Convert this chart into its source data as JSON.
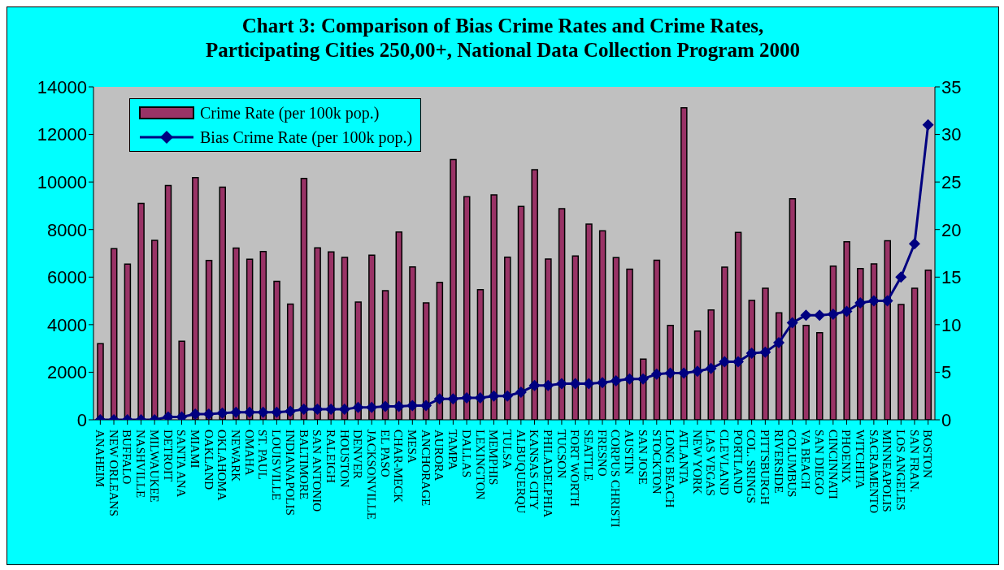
{
  "chart_data": {
    "type": "bar",
    "title": "Chart 3: Comparison of Bias Crime Rates and Crime Rates,\nParticipating Cities 250,00+, National Data Collection Program 2000",
    "categories": [
      "ANAHEIM",
      "NEW ORLEANS",
      "BUFFALO",
      "NASHVILLE",
      "MILWAUKEE",
      "DETROIT",
      "SANTA ANA",
      "MIAMI",
      "OAKLAND",
      "OKLAHOMA",
      "NEWARK",
      "OMAHA",
      "ST. PAUL",
      "LOUISVILLE",
      "INDIANAPOLIS",
      "BALTIMORE",
      "SAN ANTONIO",
      "RALEIGH",
      "HOUSTON",
      "DENVER",
      "JACKSONVILLE",
      "EL PASO",
      "CHAR-MECK",
      "MESA",
      "ANCHORAGE",
      "AURORA",
      "TAMPA",
      "DALLAS",
      "LEXINGTON",
      "MEMPHIS",
      "TULSA",
      "ALBUQUERQU",
      "KANSAS CITY",
      "PHILADELPHIA",
      "TUCSON",
      "FORT WORTH",
      "SEATTLE",
      "FRESNO",
      "CORPUS CHRISTI",
      "AUSTIN",
      "SAN JOSE",
      "STOCKTON",
      "LONG BEACH",
      "ATLANTA",
      "NEW YORK",
      "LAS VEGAS",
      "CLEVLAND",
      "PORTLAND",
      "COL. SRINGS",
      "PITTSBURGH",
      "RIVERSIDE",
      "COLUMBUS",
      "VA BEACH",
      "SAN DIEGO",
      "CINCINNATI",
      "PHOENIX",
      "WITCHITA",
      "SACRAMENTO",
      "MINNEAPOLIS",
      "LOS ANGELES",
      "SAN FRAN.",
      "BOSTON"
    ],
    "series": [
      {
        "name": "Crime Rate (per 100k pop.)",
        "color": "#993366",
        "values": [
          3200,
          7200,
          6550,
          9100,
          7550,
          9850,
          3300,
          10180,
          6700,
          9780,
          7220,
          6750,
          7080,
          5820,
          4870,
          10150,
          7230,
          7060,
          6830,
          4950,
          6920,
          5430,
          7900,
          6430,
          4920,
          5780,
          10940,
          9380,
          5470,
          9460,
          6840,
          8970,
          10520,
          6760,
          8880,
          6890,
          8230,
          7950,
          6820,
          6330,
          2550,
          6710,
          3970,
          13120,
          3730,
          4620,
          6420,
          7880,
          5020,
          5530,
          4500,
          9300,
          3970,
          3660,
          6460,
          7490,
          6360,
          6560,
          7530,
          4850,
          5530,
          6290
        ]
      },
      {
        "name": "Bias Crime Rate (per 100k pop.)",
        "type": "line",
        "axis": "y2",
        "color": "#000080",
        "marker": "diamond",
        "values": [
          0,
          0,
          0,
          0,
          0,
          0.3,
          0.3,
          0.6,
          0.6,
          0.7,
          0.8,
          0.8,
          0.8,
          0.8,
          0.9,
          1.1,
          1.1,
          1.1,
          1.1,
          1.3,
          1.3,
          1.4,
          1.4,
          1.5,
          1.5,
          2.2,
          2.2,
          2.3,
          2.3,
          2.5,
          2.5,
          2.9,
          3.6,
          3.6,
          3.8,
          3.8,
          3.8,
          3.9,
          4.1,
          4.3,
          4.3,
          4.8,
          4.9,
          4.9,
          5.1,
          5.4,
          6.1,
          6.1,
          7.0,
          7.1,
          8.1,
          10.2,
          11.0,
          11.0,
          11.1,
          11.4,
          12.3,
          12.5,
          12.5,
          15.0,
          18.5,
          31.0
        ]
      }
    ],
    "ylim": [
      0,
      14000
    ],
    "yticks": [
      0,
      2000,
      4000,
      6000,
      8000,
      10000,
      12000,
      14000
    ],
    "y2lim": [
      0,
      35
    ],
    "y2ticks": [
      0,
      5,
      10,
      15,
      20,
      25,
      30,
      35
    ],
    "grid": false,
    "legend": "top left"
  }
}
